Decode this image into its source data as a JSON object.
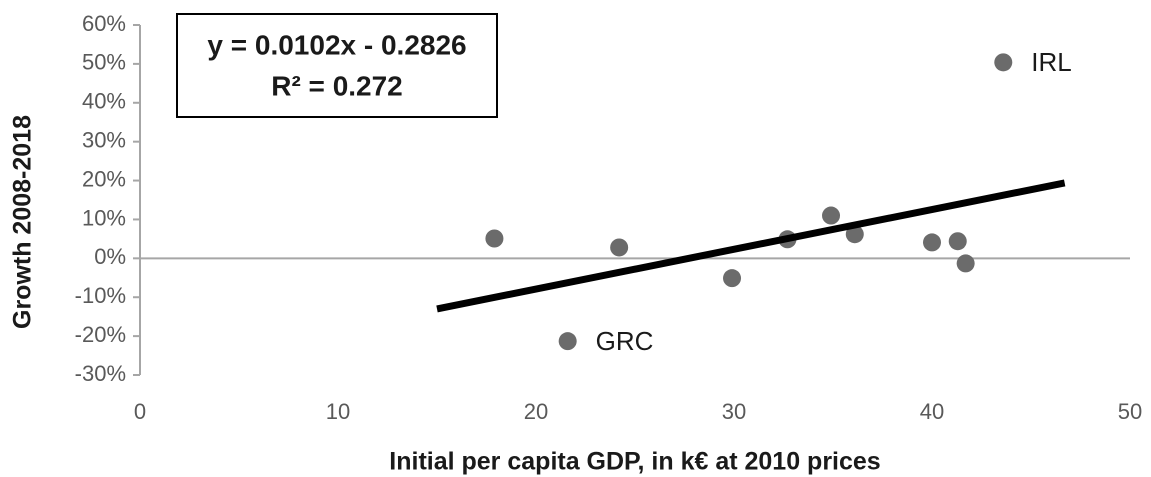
{
  "chart_data": {
    "type": "scatter",
    "xlabel": "Initial per capita GDP, in  k€ at 2010 prices",
    "ylabel": "Growth 2008-2018",
    "annotations": [
      "y = 0.0102x - 0.2826",
      "R² = 0.272"
    ],
    "xlim": [
      0,
      50
    ],
    "xticks": [
      0,
      10,
      20,
      30,
      40,
      50
    ],
    "ylim": [
      -30,
      60
    ],
    "yticks": [
      {
        "value": -30,
        "label": "-30%"
      },
      {
        "value": -20,
        "label": "-20%"
      },
      {
        "value": -10,
        "label": "-10%"
      },
      {
        "value": 0,
        "label": "0%"
      },
      {
        "value": 10,
        "label": "10%"
      },
      {
        "value": 20,
        "label": "20%"
      },
      {
        "value": 30,
        "label": "30%"
      },
      {
        "value": 40,
        "label": "40%"
      },
      {
        "value": 50,
        "label": "50%"
      },
      {
        "value": 60,
        "label": "60%"
      }
    ],
    "series": [
      {
        "color": "#6b6b6b",
        "x": [
          17.9,
          24.2,
          21.6,
          29.9,
          32.7,
          34.9,
          36.1,
          40.0,
          41.3,
          41.7,
          43.6
        ],
        "values": [
          5.1,
          2.8,
          -21.3,
          -5.1,
          4.9,
          11,
          6.2,
          4.1,
          4.4,
          -1.3,
          50.4
        ],
        "point_labels": [
          null,
          null,
          "GRC",
          null,
          null,
          null,
          null,
          null,
          null,
          null,
          "IRL"
        ]
      },
      {
        "type": "line",
        "color": "#000000",
        "x": [
          15,
          46.7
        ],
        "values": [
          -13,
          19.4
        ]
      }
    ]
  }
}
